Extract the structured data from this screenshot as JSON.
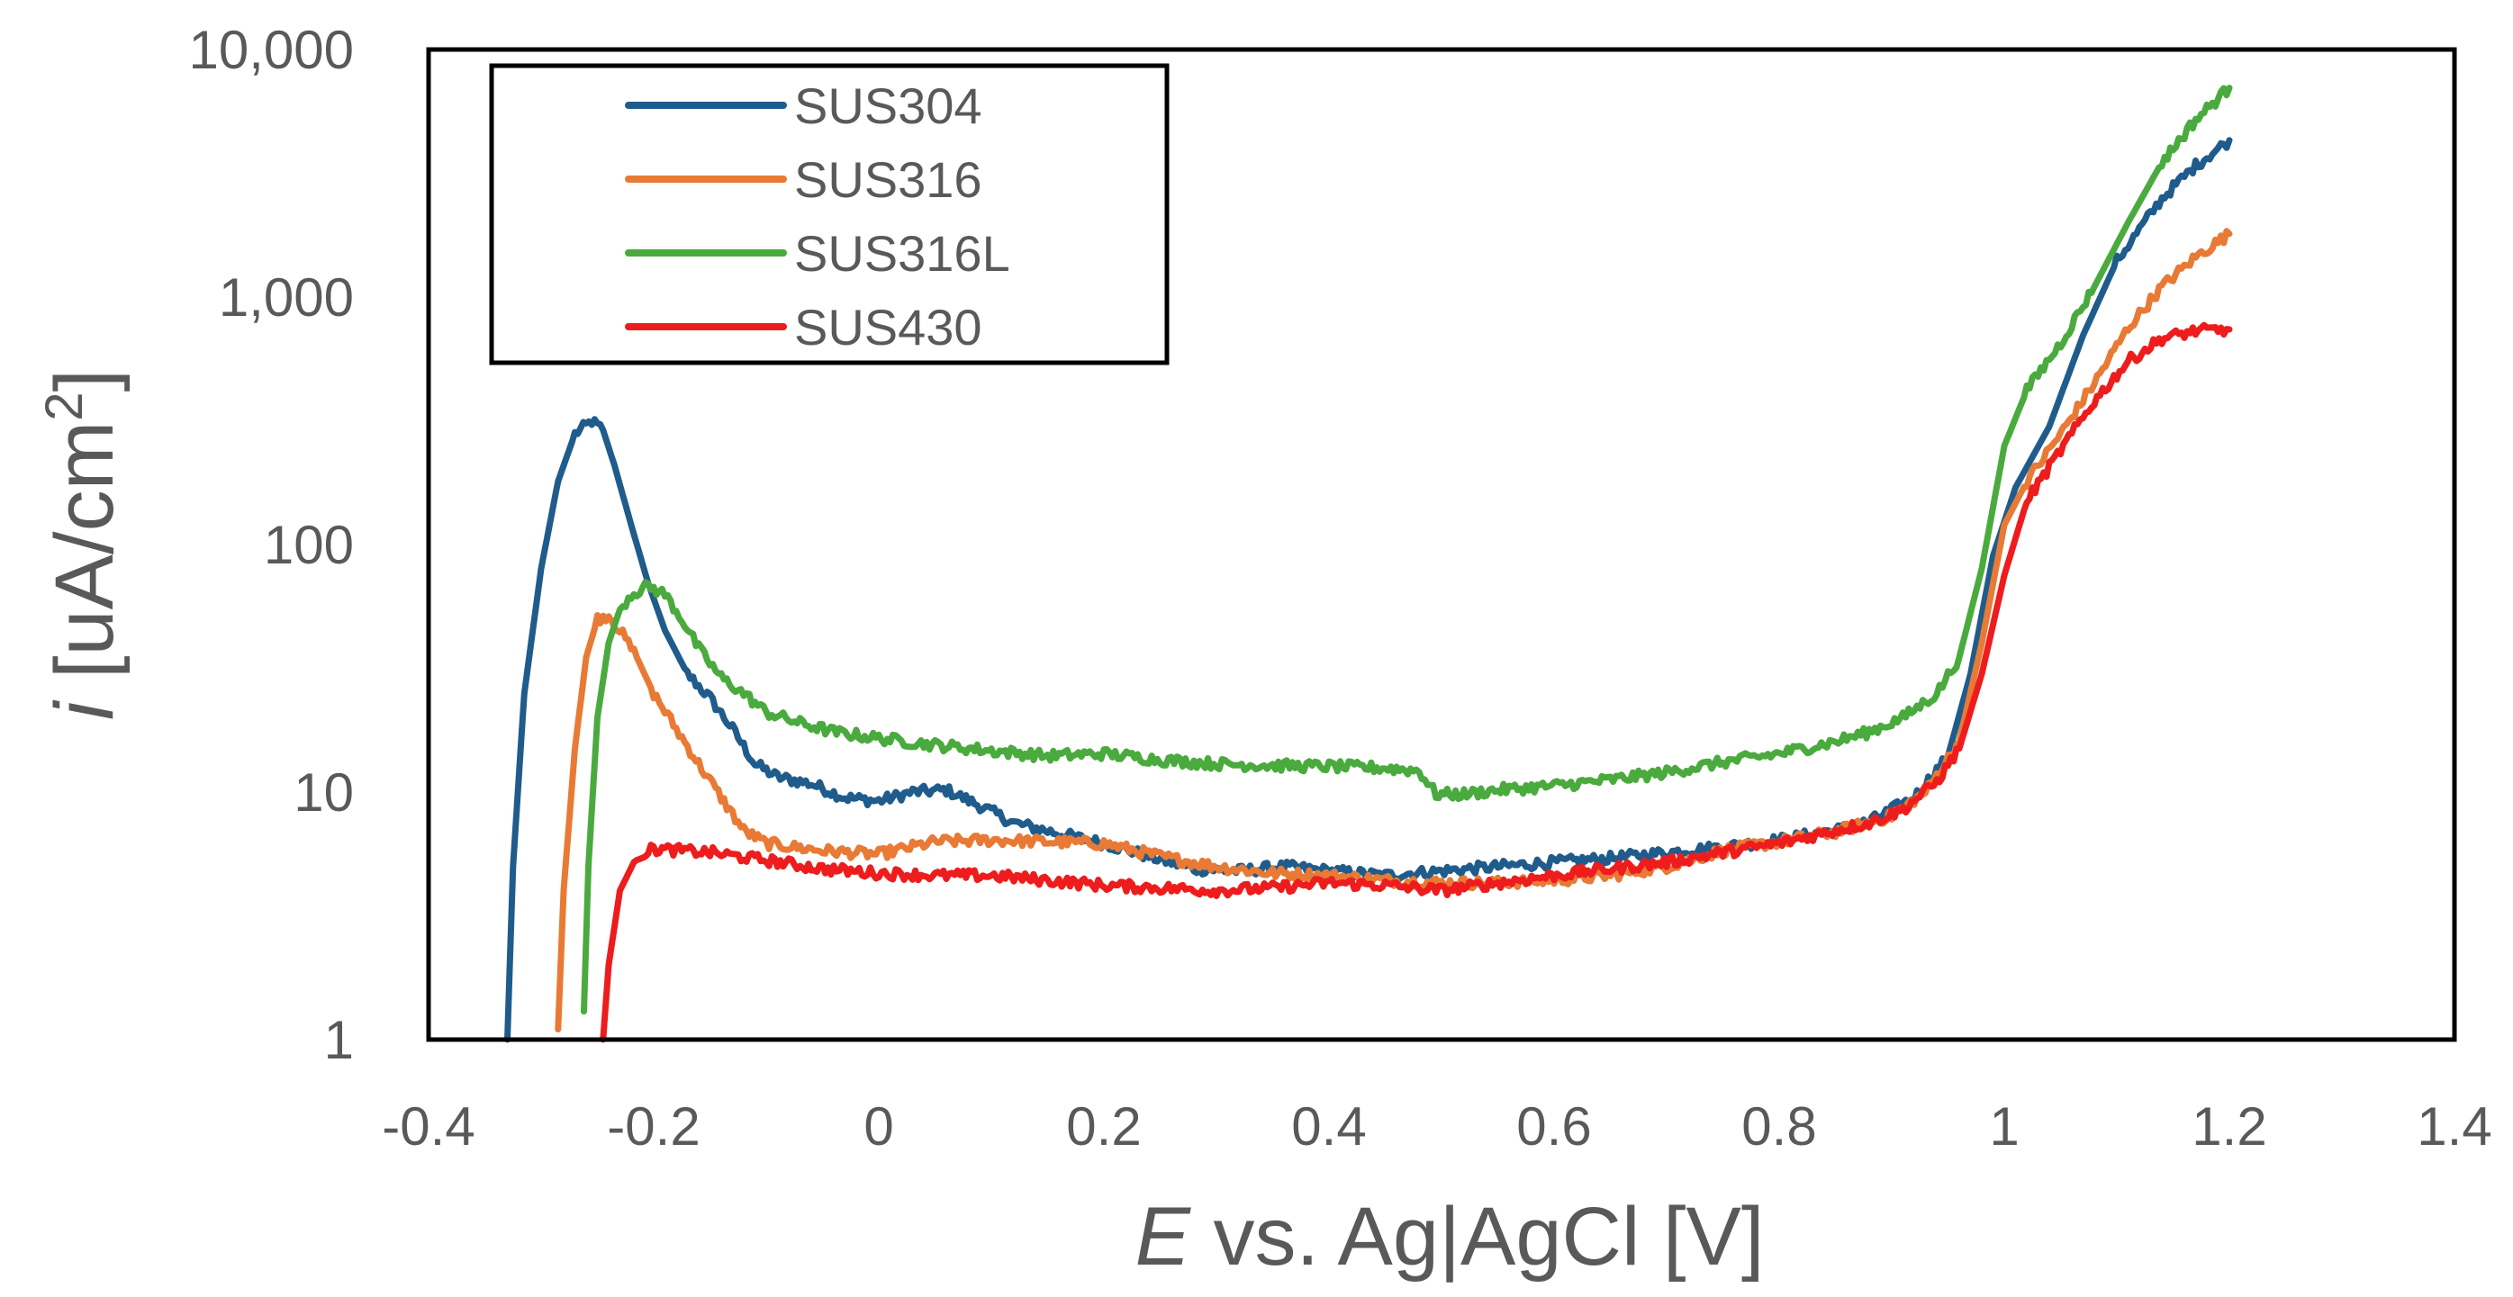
{
  "chart_data": {
    "type": "line",
    "title": "",
    "xlabel": {
      "italic": "E",
      "rest": " vs. Ag|AgCl [V]"
    },
    "ylabel": {
      "italic": "i",
      "rest": " [uA/cm",
      "sup": "2",
      "close": "]"
    },
    "xlim": [
      -0.4,
      1.4
    ],
    "ylim": [
      1,
      10000
    ],
    "yscale": "log",
    "grid": false,
    "legend_position": "top-left",
    "xticks": [
      -0.4,
      -0.2,
      0,
      0.2,
      0.4,
      0.6,
      0.8,
      1,
      1.2,
      1.4
    ],
    "xtick_labels": [
      "-0.4",
      "-0.2",
      "0",
      "0.2",
      "0.4",
      "0.6",
      "0.8",
      "1",
      "1.2",
      "1.4"
    ],
    "yticks": [
      1,
      10,
      100,
      1000,
      10000
    ],
    "ytick_labels": [
      "1",
      "10",
      "100",
      "1,000",
      "10,000"
    ],
    "series": [
      {
        "name": "SUS304",
        "color": "#1f5c8c",
        "points": [
          [
            -0.33,
            1
          ],
          [
            -0.325,
            5
          ],
          [
            -0.315,
            25
          ],
          [
            -0.3,
            80
          ],
          [
            -0.285,
            180
          ],
          [
            -0.27,
            280
          ],
          [
            -0.255,
            315
          ],
          [
            -0.245,
            290
          ],
          [
            -0.235,
            210
          ],
          [
            -0.22,
            120
          ],
          [
            -0.205,
            70
          ],
          [
            -0.19,
            45
          ],
          [
            -0.17,
            30
          ],
          [
            -0.15,
            24
          ],
          [
            -0.13,
            18
          ],
          [
            -0.11,
            13
          ],
          [
            -0.09,
            11.5
          ],
          [
            -0.06,
            10.8
          ],
          [
            -0.03,
            9.5
          ],
          [
            0,
            9.2
          ],
          [
            0.03,
            10
          ],
          [
            0.06,
            10.2
          ],
          [
            0.09,
            8.8
          ],
          [
            0.12,
            7.5
          ],
          [
            0.16,
            6.8
          ],
          [
            0.2,
            6.2
          ],
          [
            0.24,
            5.5
          ],
          [
            0.28,
            4.9
          ],
          [
            0.32,
            4.8
          ],
          [
            0.36,
            5
          ],
          [
            0.4,
            4.8
          ],
          [
            0.45,
            4.6
          ],
          [
            0.5,
            4.8
          ],
          [
            0.55,
            5
          ],
          [
            0.6,
            5.2
          ],
          [
            0.65,
            5.4
          ],
          [
            0.7,
            5.7
          ],
          [
            0.75,
            6
          ],
          [
            0.8,
            6.4
          ],
          [
            0.85,
            7
          ],
          [
            0.88,
            7.6
          ],
          [
            0.92,
            9.5
          ],
          [
            0.95,
            14
          ],
          [
            0.97,
            30
          ],
          [
            0.99,
            90
          ],
          [
            1.01,
            170
          ],
          [
            1.04,
            300
          ],
          [
            1.07,
            700
          ],
          [
            1.1,
            1400
          ],
          [
            1.14,
            2500
          ],
          [
            1.17,
            3400
          ],
          [
            1.2,
            4300
          ]
        ]
      },
      {
        "name": "SUS316",
        "color": "#e87a35",
        "points": [
          [
            -0.285,
            1.1
          ],
          [
            -0.28,
            4
          ],
          [
            -0.27,
            15
          ],
          [
            -0.26,
            35
          ],
          [
            -0.25,
            50
          ],
          [
            -0.24,
            52
          ],
          [
            -0.23,
            45
          ],
          [
            -0.215,
            35
          ],
          [
            -0.2,
            25
          ],
          [
            -0.18,
            18
          ],
          [
            -0.16,
            13
          ],
          [
            -0.14,
            9.5
          ],
          [
            -0.12,
            7
          ],
          [
            -0.1,
            6.2
          ],
          [
            -0.05,
            5.8
          ],
          [
            0,
            5.6
          ],
          [
            0.05,
            6.3
          ],
          [
            0.1,
            6.4
          ],
          [
            0.15,
            6.3
          ],
          [
            0.2,
            6.2
          ],
          [
            0.25,
            5.5
          ],
          [
            0.3,
            5
          ],
          [
            0.35,
            4.7
          ],
          [
            0.4,
            4.6
          ],
          [
            0.45,
            4.4
          ],
          [
            0.5,
            4.3
          ],
          [
            0.55,
            4.3
          ],
          [
            0.6,
            4.4
          ],
          [
            0.65,
            4.6
          ],
          [
            0.7,
            5
          ],
          [
            0.75,
            5.8
          ],
          [
            0.8,
            6.3
          ],
          [
            0.85,
            6.9
          ],
          [
            0.9,
            8
          ],
          [
            0.93,
            10
          ],
          [
            0.96,
            16
          ],
          [
            0.98,
            40
          ],
          [
            1,
            120
          ],
          [
            1.02,
            180
          ],
          [
            1.05,
            280
          ],
          [
            1.08,
            450
          ],
          [
            1.11,
            750
          ],
          [
            1.14,
            1100
          ],
          [
            1.17,
            1450
          ],
          [
            1.2,
            1800
          ]
        ]
      },
      {
        "name": "SUS316L",
        "color": "#4aaa3e",
        "points": [
          [
            -0.262,
            1.3
          ],
          [
            -0.258,
            5
          ],
          [
            -0.25,
            20
          ],
          [
            -0.24,
            40
          ],
          [
            -0.23,
            55
          ],
          [
            -0.22,
            63
          ],
          [
            -0.205,
            68
          ],
          [
            -0.19,
            63
          ],
          [
            -0.175,
            50
          ],
          [
            -0.16,
            38
          ],
          [
            -0.14,
            29
          ],
          [
            -0.12,
            25
          ],
          [
            -0.1,
            21
          ],
          [
            -0.07,
            19
          ],
          [
            -0.04,
            17.5
          ],
          [
            0,
            16.5
          ],
          [
            0.05,
            15.5
          ],
          [
            0.1,
            14.7
          ],
          [
            0.15,
            14
          ],
          [
            0.2,
            14.3
          ],
          [
            0.25,
            13.5
          ],
          [
            0.3,
            13
          ],
          [
            0.35,
            12.8
          ],
          [
            0.4,
            12.7
          ],
          [
            0.45,
            12.5
          ],
          [
            0.48,
            12.2
          ],
          [
            0.495,
            9.8
          ],
          [
            0.52,
            9.8
          ],
          [
            0.55,
            10.2
          ],
          [
            0.6,
            10.6
          ],
          [
            0.65,
            11.2
          ],
          [
            0.7,
            12
          ],
          [
            0.75,
            13.2
          ],
          [
            0.8,
            14.3
          ],
          [
            0.85,
            16
          ],
          [
            0.88,
            17.5
          ],
          [
            0.91,
            20
          ],
          [
            0.94,
            25
          ],
          [
            0.96,
            35
          ],
          [
            0.98,
            80
          ],
          [
            1,
            250
          ],
          [
            1.02,
            420
          ],
          [
            1.05,
            650
          ],
          [
            1.08,
            1100
          ],
          [
            1.11,
            2000
          ],
          [
            1.14,
            3500
          ],
          [
            1.17,
            5200
          ],
          [
            1.2,
            7000
          ]
        ]
      },
      {
        "name": "SUS430",
        "color": "#ee1c1c",
        "points": [
          [
            -0.245,
            1
          ],
          [
            -0.24,
            2
          ],
          [
            -0.23,
            4
          ],
          [
            -0.215,
            5.5
          ],
          [
            -0.2,
            5.9
          ],
          [
            -0.15,
            5.7
          ],
          [
            -0.1,
            5.3
          ],
          [
            -0.05,
            4.9
          ],
          [
            0,
            4.7
          ],
          [
            0.05,
            4.6
          ],
          [
            0.1,
            4.6
          ],
          [
            0.15,
            4.4
          ],
          [
            0.2,
            4.2
          ],
          [
            0.25,
            4.1
          ],
          [
            0.3,
            4
          ],
          [
            0.35,
            4.1
          ],
          [
            0.4,
            4.3
          ],
          [
            0.45,
            4.2
          ],
          [
            0.5,
            4
          ],
          [
            0.55,
            4.3
          ],
          [
            0.6,
            4.6
          ],
          [
            0.65,
            4.9
          ],
          [
            0.7,
            5.2
          ],
          [
            0.75,
            5.7
          ],
          [
            0.8,
            6.2
          ],
          [
            0.85,
            7
          ],
          [
            0.88,
            7.5
          ],
          [
            0.91,
            8.5
          ],
          [
            0.94,
            11
          ],
          [
            0.96,
            15
          ],
          [
            0.98,
            30
          ],
          [
            1,
            75
          ],
          [
            1.02,
            150
          ],
          [
            1.05,
            240
          ],
          [
            1.08,
            380
          ],
          [
            1.11,
            550
          ],
          [
            1.14,
            680
          ],
          [
            1.17,
            730
          ],
          [
            1.2,
            740
          ]
        ]
      }
    ]
  }
}
